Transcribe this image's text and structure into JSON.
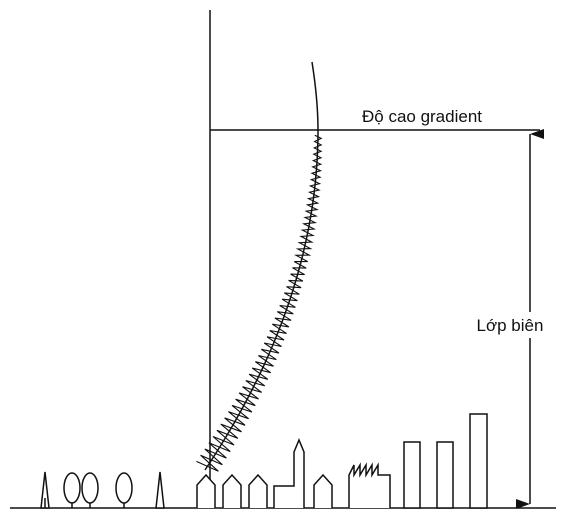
{
  "labels": {
    "gradient_height": "Độ cao gradient",
    "boundary_layer": "Lớp biên"
  }
}
